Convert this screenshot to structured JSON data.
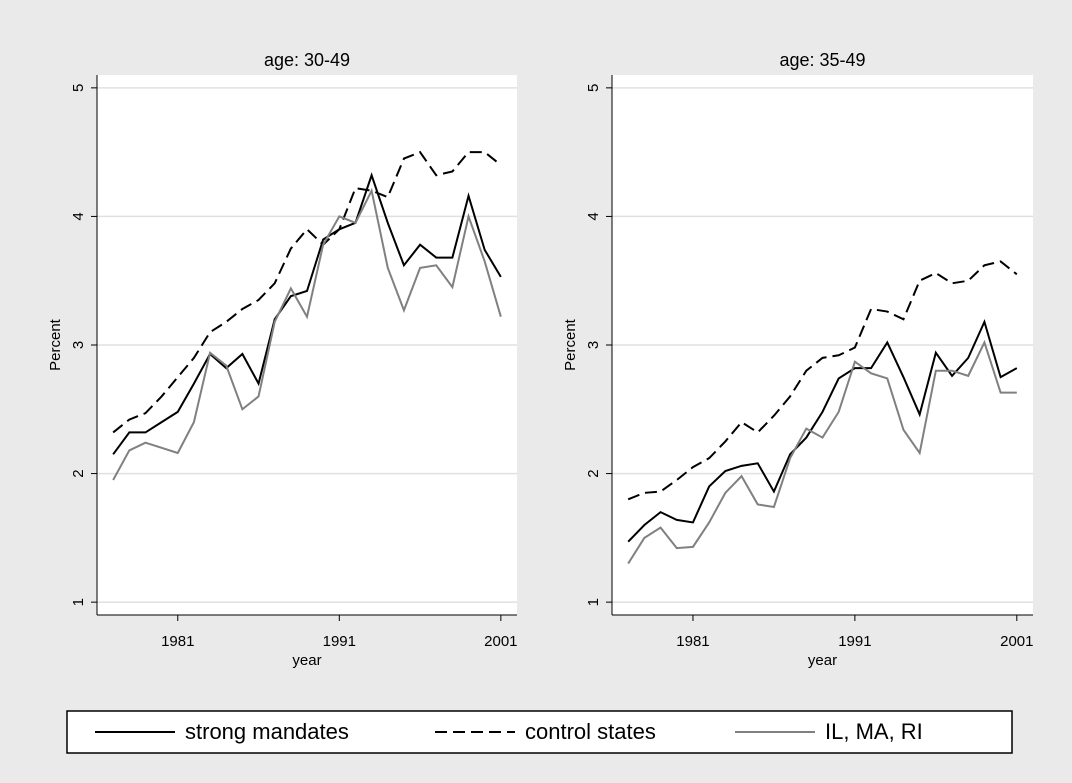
{
  "chart_data": [
    {
      "type": "line",
      "title": "age: 30-49",
      "xlabel": "year",
      "ylabel": "Percent",
      "x": [
        1977,
        1978,
        1979,
        1980,
        1981,
        1982,
        1983,
        1984,
        1985,
        1986,
        1987,
        1988,
        1989,
        1990,
        1991,
        1992,
        1993,
        1994,
        1995,
        1996,
        1997,
        1998,
        1999,
        2000,
        2001
      ],
      "xlim": [
        1976,
        2002
      ],
      "xticks": [
        1981,
        1991,
        2001
      ],
      "ylim": [
        0.9,
        5.1
      ],
      "yticks": [
        1,
        2,
        3,
        4,
        5
      ],
      "grid": true,
      "series": [
        {
          "name": "strong mandates",
          "color": "#000000",
          "dash": "solid",
          "values": [
            2.15,
            2.32,
            2.32,
            2.4,
            2.48,
            2.7,
            2.93,
            2.82,
            2.93,
            2.7,
            3.2,
            3.38,
            3.42,
            3.82,
            3.9,
            3.95,
            4.32,
            3.95,
            3.62,
            3.78,
            3.68,
            3.68,
            4.16,
            3.74,
            3.53
          ]
        },
        {
          "name": "control states",
          "color": "#000000",
          "dash": "dashed",
          "values": [
            2.32,
            2.42,
            2.47,
            2.6,
            2.75,
            2.9,
            3.1,
            3.18,
            3.28,
            3.35,
            3.48,
            3.75,
            3.9,
            3.78,
            3.9,
            4.22,
            4.2,
            4.15,
            4.45,
            4.5,
            4.32,
            4.35,
            4.5,
            4.5,
            4.4
          ]
        },
        {
          "name": "IL, MA, RI",
          "color": "#808080",
          "dash": "solid",
          "values": [
            1.95,
            2.18,
            2.24,
            2.2,
            2.16,
            2.4,
            2.94,
            2.84,
            2.5,
            2.6,
            3.18,
            3.44,
            3.22,
            3.78,
            4.0,
            3.95,
            4.2,
            3.6,
            3.27,
            3.6,
            3.62,
            3.45,
            4.0,
            3.65,
            3.22
          ]
        }
      ]
    },
    {
      "type": "line",
      "title": "age: 35-49",
      "xlabel": "year",
      "ylabel": "Percent",
      "x": [
        1977,
        1978,
        1979,
        1980,
        1981,
        1982,
        1983,
        1984,
        1985,
        1986,
        1987,
        1988,
        1989,
        1990,
        1991,
        1992,
        1993,
        1994,
        1995,
        1996,
        1997,
        1998,
        1999,
        2000,
        2001
      ],
      "xlim": [
        1976,
        2002
      ],
      "xticks": [
        1981,
        1991,
        2001
      ],
      "ylim": [
        0.9,
        5.1
      ],
      "yticks": [
        1,
        2,
        3,
        4,
        5
      ],
      "grid": true,
      "series": [
        {
          "color": "#000000",
          "dash": "solid",
          "values": [
            1.47,
            1.6,
            1.7,
            1.64,
            1.62,
            1.9,
            2.02,
            2.06,
            2.08,
            1.86,
            2.15,
            2.28,
            2.48,
            2.74,
            2.82,
            2.82,
            3.02,
            2.75,
            2.46,
            2.94,
            2.76,
            2.9,
            3.18,
            2.75,
            2.82
          ]
        },
        {
          "color": "#000000",
          "dash": "dashed",
          "values": [
            1.8,
            1.85,
            1.86,
            1.95,
            2.05,
            2.12,
            2.25,
            2.4,
            2.32,
            2.45,
            2.6,
            2.8,
            2.9,
            2.92,
            2.98,
            3.28,
            3.26,
            3.2,
            3.5,
            3.56,
            3.48,
            3.5,
            3.62,
            3.65,
            3.55
          ]
        },
        {
          "color": "#808080",
          "dash": "solid",
          "values": [
            1.3,
            1.5,
            1.58,
            1.42,
            1.43,
            1.62,
            1.85,
            1.98,
            1.76,
            1.74,
            2.12,
            2.35,
            2.28,
            2.48,
            2.87,
            2.78,
            2.74,
            2.34,
            2.16,
            2.8,
            2.8,
            2.76,
            3.02,
            2.63,
            2.63
          ]
        }
      ]
    }
  ]
}
